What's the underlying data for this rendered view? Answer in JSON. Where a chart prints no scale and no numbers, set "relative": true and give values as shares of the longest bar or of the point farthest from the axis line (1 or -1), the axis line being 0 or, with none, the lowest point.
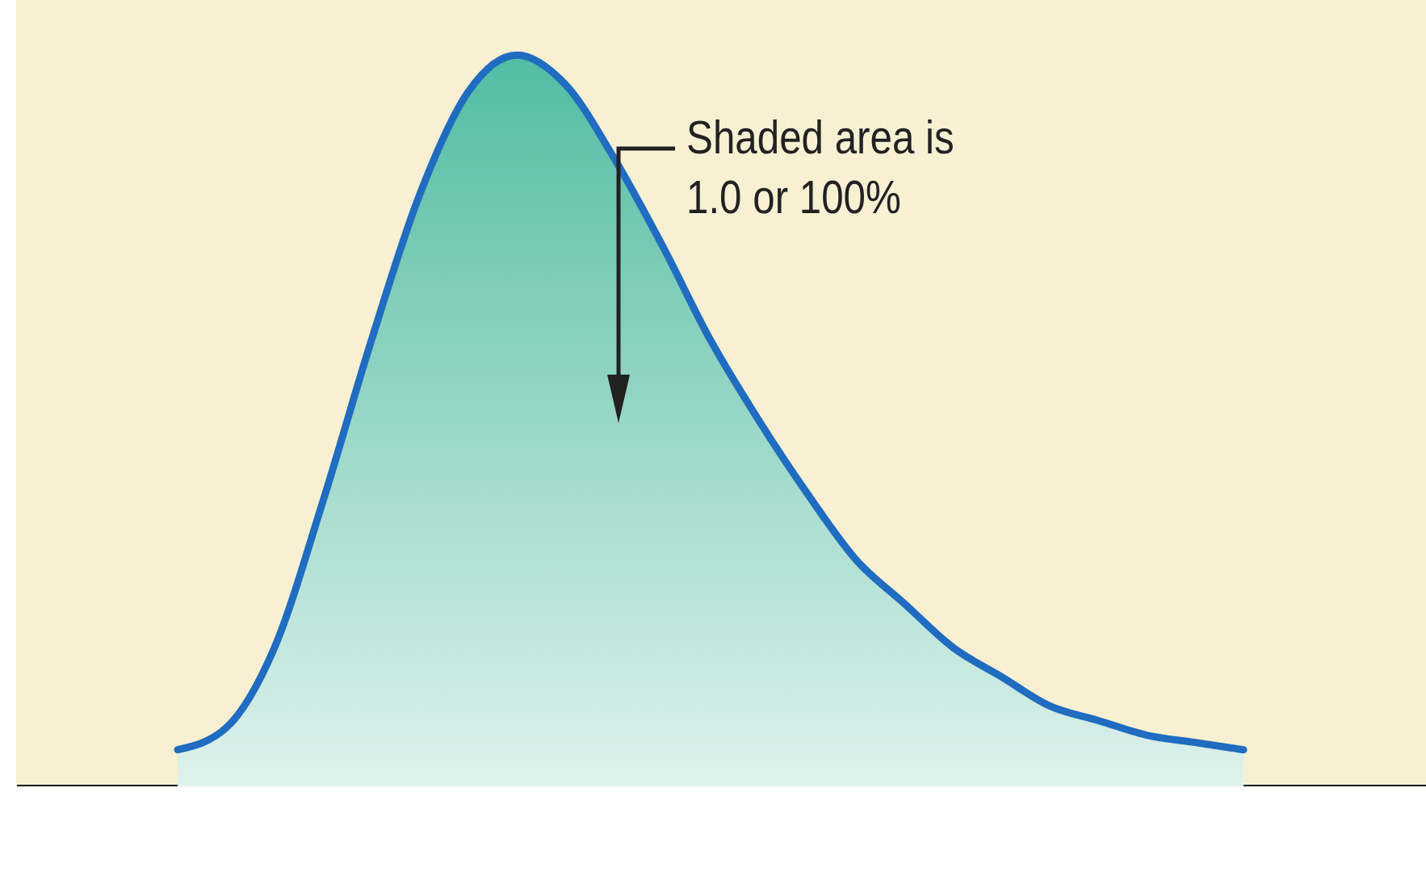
{
  "chart_data": {
    "type": "area",
    "relative": true,
    "categories": [
      null,
      null,
      null,
      null,
      null,
      null,
      null,
      null,
      null,
      null,
      null,
      null,
      null,
      null,
      null,
      null,
      null,
      null,
      null,
      null,
      null,
      null,
      null
    ],
    "series": [
      {
        "color": "#1f6cc0",
        "values": [
          0.05,
          0.08,
          0.19,
          0.39,
          0.61,
          0.81,
          0.95,
          1.0,
          0.96,
          0.86,
          0.74,
          0.61,
          0.5,
          0.4,
          0.31,
          0.25,
          0.19,
          0.15,
          0.11,
          0.09,
          0.07,
          0.06,
          0.05
        ]
      }
    ],
    "annotations": [
      "Shaded area is 1.0 or 100%"
    ]
  }
}
